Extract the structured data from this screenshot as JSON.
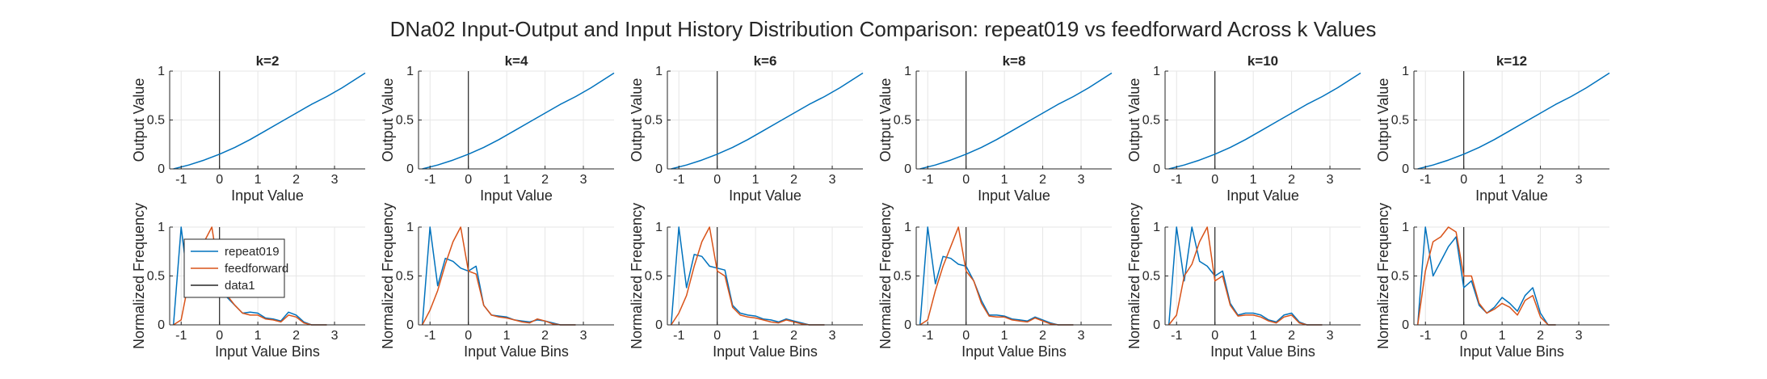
{
  "figure": {
    "title": "DNa02 Input-Output and Input History Distribution Comparison: repeat019 vs feedforward Across k Values"
  },
  "colors": {
    "repeat019": "#0072BD",
    "feedforward": "#D95319",
    "data1": "#262626",
    "grid": "#e6e6e6",
    "axis": "#262626"
  },
  "legend": {
    "entries": [
      "repeat019",
      "feedforward",
      "data1"
    ],
    "location": "inside upper-left of first histogram panel"
  },
  "chart_data": [
    {
      "type": "line",
      "panel": "io",
      "title": "k=2",
      "xlabel": "Input Value",
      "ylabel": "Output Value",
      "xlim": [
        -1.3,
        3.8
      ],
      "ylim": [
        0,
        1
      ],
      "xticks": [
        -1,
        0,
        1,
        2,
        3
      ],
      "yticks": [
        0,
        0.5,
        1
      ],
      "grid": true,
      "vline_x": 0,
      "series": [
        {
          "name": "repeat019",
          "color": "#0072BD",
          "x": [
            -1.2,
            -0.8,
            -0.4,
            0,
            0.4,
            0.8,
            1.2,
            1.6,
            2.0,
            2.4,
            2.8,
            3.2,
            3.8
          ],
          "y": [
            0.0,
            0.04,
            0.09,
            0.15,
            0.22,
            0.3,
            0.39,
            0.48,
            0.57,
            0.66,
            0.74,
            0.83,
            0.98
          ]
        }
      ]
    },
    {
      "type": "line",
      "panel": "io",
      "title": "k=4",
      "xlabel": "Input Value",
      "ylabel": "Output Value",
      "xlim": [
        -1.3,
        3.8
      ],
      "ylim": [
        0,
        1
      ],
      "xticks": [
        -1,
        0,
        1,
        2,
        3
      ],
      "yticks": [
        0,
        0.5,
        1
      ],
      "grid": true,
      "vline_x": 0,
      "series": [
        {
          "name": "repeat019",
          "color": "#0072BD",
          "x": [
            -1.2,
            -0.8,
            -0.4,
            0,
            0.4,
            0.8,
            1.2,
            1.6,
            2.0,
            2.4,
            2.8,
            3.2,
            3.8
          ],
          "y": [
            0.0,
            0.04,
            0.09,
            0.15,
            0.22,
            0.3,
            0.39,
            0.48,
            0.57,
            0.66,
            0.74,
            0.83,
            0.98
          ]
        }
      ]
    },
    {
      "type": "line",
      "panel": "io",
      "title": "k=6",
      "xlabel": "Input Value",
      "ylabel": "Output Value",
      "xlim": [
        -1.3,
        3.8
      ],
      "ylim": [
        0,
        1
      ],
      "xticks": [
        -1,
        0,
        1,
        2,
        3
      ],
      "yticks": [
        0,
        0.5,
        1
      ],
      "grid": true,
      "vline_x": 0,
      "series": [
        {
          "name": "repeat019",
          "color": "#0072BD",
          "x": [
            -1.2,
            -0.8,
            -0.4,
            0,
            0.4,
            0.8,
            1.2,
            1.6,
            2.0,
            2.4,
            2.8,
            3.2,
            3.8
          ],
          "y": [
            0.0,
            0.04,
            0.09,
            0.15,
            0.22,
            0.3,
            0.39,
            0.48,
            0.57,
            0.66,
            0.74,
            0.83,
            0.98
          ]
        }
      ]
    },
    {
      "type": "line",
      "panel": "io",
      "title": "k=8",
      "xlabel": "Input Value",
      "ylabel": "Output Value",
      "xlim": [
        -1.3,
        3.8
      ],
      "ylim": [
        0,
        1
      ],
      "xticks": [
        -1,
        0,
        1,
        2,
        3
      ],
      "yticks": [
        0,
        0.5,
        1
      ],
      "grid": true,
      "vline_x": 0,
      "series": [
        {
          "name": "repeat019",
          "color": "#0072BD",
          "x": [
            -1.2,
            -0.8,
            -0.4,
            0,
            0.4,
            0.8,
            1.2,
            1.6,
            2.0,
            2.4,
            2.8,
            3.2,
            3.8
          ],
          "y": [
            0.0,
            0.04,
            0.09,
            0.15,
            0.22,
            0.3,
            0.39,
            0.48,
            0.57,
            0.66,
            0.74,
            0.83,
            0.98
          ]
        }
      ]
    },
    {
      "type": "line",
      "panel": "io",
      "title": "k=10",
      "xlabel": "Input Value",
      "ylabel": "Output Value",
      "xlim": [
        -1.3,
        3.8
      ],
      "ylim": [
        0,
        1
      ],
      "xticks": [
        -1,
        0,
        1,
        2,
        3
      ],
      "yticks": [
        0,
        0.5,
        1
      ],
      "grid": true,
      "vline_x": 0,
      "series": [
        {
          "name": "repeat019",
          "color": "#0072BD",
          "x": [
            -1.2,
            -0.8,
            -0.4,
            0,
            0.4,
            0.8,
            1.2,
            1.6,
            2.0,
            2.4,
            2.8,
            3.2,
            3.8
          ],
          "y": [
            0.0,
            0.04,
            0.09,
            0.15,
            0.22,
            0.3,
            0.39,
            0.48,
            0.57,
            0.66,
            0.74,
            0.83,
            0.98
          ]
        }
      ]
    },
    {
      "type": "line",
      "panel": "io",
      "title": "k=12",
      "xlabel": "Input Value",
      "ylabel": "Output Value",
      "xlim": [
        -1.3,
        3.8
      ],
      "ylim": [
        0,
        1
      ],
      "xticks": [
        -1,
        0,
        1,
        2,
        3
      ],
      "yticks": [
        0,
        0.5,
        1
      ],
      "grid": true,
      "vline_x": 0,
      "series": [
        {
          "name": "repeat019",
          "color": "#0072BD",
          "x": [
            -1.2,
            -0.8,
            -0.4,
            0,
            0.4,
            0.8,
            1.2,
            1.6,
            2.0,
            2.4,
            2.8,
            3.2,
            3.8
          ],
          "y": [
            0.0,
            0.04,
            0.09,
            0.15,
            0.22,
            0.3,
            0.39,
            0.48,
            0.57,
            0.66,
            0.74,
            0.83,
            0.98
          ]
        }
      ]
    },
    {
      "type": "line",
      "panel": "hist",
      "title": "",
      "xlabel": "Input Value Bins",
      "ylabel": "Normalized Frequency",
      "xlim": [
        -1.3,
        3.8
      ],
      "ylim": [
        0,
        1
      ],
      "xticks": [
        -1,
        0,
        1,
        2,
        3
      ],
      "yticks": [
        0,
        0.5,
        1
      ],
      "grid": true,
      "vline_x": 0,
      "series": [
        {
          "name": "repeat019",
          "color": "#0072BD",
          "x": [
            -1.2,
            -1.0,
            -0.8,
            -0.6,
            -0.4,
            -0.2,
            0.0,
            0.2,
            0.4,
            0.6,
            0.8,
            1.0,
            1.2,
            1.4,
            1.6,
            1.8,
            2.0,
            2.2,
            2.4,
            2.6,
            2.8
          ],
          "y": [
            0.0,
            1.0,
            0.36,
            0.7,
            0.6,
            0.55,
            0.5,
            0.28,
            0.2,
            0.12,
            0.13,
            0.12,
            0.07,
            0.06,
            0.04,
            0.13,
            0.1,
            0.03,
            0.0,
            0.0,
            0.0
          ]
        },
        {
          "name": "feedforward",
          "color": "#D95319",
          "x": [
            -1.2,
            -1.0,
            -0.8,
            -0.6,
            -0.4,
            -0.2,
            0.0,
            0.2,
            0.4,
            0.6,
            0.8,
            1.0,
            1.2,
            1.4,
            1.6,
            1.8,
            2.0,
            2.2,
            2.4,
            2.6,
            2.8
          ],
          "y": [
            0.0,
            0.05,
            0.45,
            0.6,
            0.85,
            1.0,
            0.5,
            0.3,
            0.2,
            0.12,
            0.1,
            0.1,
            0.06,
            0.05,
            0.03,
            0.1,
            0.08,
            0.02,
            0.0,
            0.0,
            0.0
          ]
        }
      ]
    },
    {
      "type": "line",
      "panel": "hist",
      "title": "",
      "xlabel": "Input Value Bins",
      "ylabel": "Normalized Frequency",
      "xlim": [
        -1.3,
        3.8
      ],
      "ylim": [
        0,
        1
      ],
      "xticks": [
        -1,
        0,
        1,
        2,
        3
      ],
      "yticks": [
        0,
        0.5,
        1
      ],
      "grid": true,
      "vline_x": 0,
      "series": [
        {
          "name": "repeat019",
          "color": "#0072BD",
          "x": [
            -1.2,
            -1.0,
            -0.8,
            -0.6,
            -0.4,
            -0.2,
            0.0,
            0.2,
            0.4,
            0.6,
            0.8,
            1.0,
            1.2,
            1.4,
            1.6,
            1.8,
            2.0,
            2.2,
            2.4,
            2.6,
            2.8
          ],
          "y": [
            0.0,
            1.0,
            0.4,
            0.68,
            0.65,
            0.58,
            0.55,
            0.6,
            0.2,
            0.1,
            0.09,
            0.08,
            0.05,
            0.04,
            0.03,
            0.05,
            0.04,
            0.02,
            0.0,
            0.0,
            0.0
          ]
        },
        {
          "name": "feedforward",
          "color": "#D95319",
          "x": [
            -1.2,
            -1.0,
            -0.8,
            -0.6,
            -0.4,
            -0.2,
            0.0,
            0.2,
            0.4,
            0.6,
            0.8,
            1.0,
            1.2,
            1.4,
            1.6,
            1.8,
            2.0,
            2.2,
            2.4,
            2.6,
            2.8
          ],
          "y": [
            0.0,
            0.15,
            0.35,
            0.62,
            0.85,
            1.0,
            0.55,
            0.52,
            0.2,
            0.1,
            0.08,
            0.07,
            0.05,
            0.03,
            0.02,
            0.06,
            0.04,
            0.01,
            0.0,
            0.0,
            0.0
          ]
        }
      ]
    },
    {
      "type": "line",
      "panel": "hist",
      "title": "",
      "xlabel": "Input Value Bins",
      "ylabel": "Normalized Frequency",
      "xlim": [
        -1.3,
        3.8
      ],
      "ylim": [
        0,
        1
      ],
      "xticks": [
        -1,
        0,
        1,
        2,
        3
      ],
      "yticks": [
        0,
        0.5,
        1
      ],
      "grid": true,
      "vline_x": 0,
      "series": [
        {
          "name": "repeat019",
          "color": "#0072BD",
          "x": [
            -1.2,
            -1.0,
            -0.8,
            -0.6,
            -0.4,
            -0.2,
            0.0,
            0.2,
            0.4,
            0.6,
            0.8,
            1.0,
            1.2,
            1.4,
            1.6,
            1.8,
            2.0,
            2.2,
            2.4,
            2.6,
            2.8
          ],
          "y": [
            0.0,
            1.0,
            0.38,
            0.72,
            0.7,
            0.6,
            0.58,
            0.56,
            0.2,
            0.12,
            0.1,
            0.09,
            0.06,
            0.05,
            0.03,
            0.06,
            0.04,
            0.02,
            0.0,
            0.0,
            0.0
          ]
        },
        {
          "name": "feedforward",
          "color": "#D95319",
          "x": [
            -1.2,
            -1.0,
            -0.8,
            -0.6,
            -0.4,
            -0.2,
            0.0,
            0.2,
            0.4,
            0.6,
            0.8,
            1.0,
            1.2,
            1.4,
            1.6,
            1.8,
            2.0,
            2.2,
            2.4,
            2.6,
            2.8
          ],
          "y": [
            0.0,
            0.12,
            0.3,
            0.6,
            0.85,
            1.0,
            0.55,
            0.5,
            0.18,
            0.1,
            0.08,
            0.07,
            0.05,
            0.03,
            0.02,
            0.05,
            0.03,
            0.01,
            0.0,
            0.0,
            0.0
          ]
        }
      ]
    },
    {
      "type": "line",
      "panel": "hist",
      "title": "",
      "xlabel": "Input Value Bins",
      "ylabel": "Normalized Frequency",
      "xlim": [
        -1.3,
        3.8
      ],
      "ylim": [
        0,
        1
      ],
      "xticks": [
        -1,
        0,
        1,
        2,
        3
      ],
      "yticks": [
        0,
        0.5,
        1
      ],
      "grid": true,
      "vline_x": 0,
      "series": [
        {
          "name": "repeat019",
          "color": "#0072BD",
          "x": [
            -1.2,
            -1.0,
            -0.8,
            -0.6,
            -0.4,
            -0.2,
            0.0,
            0.2,
            0.4,
            0.6,
            0.8,
            1.0,
            1.2,
            1.4,
            1.6,
            1.8,
            2.0,
            2.2,
            2.4,
            2.6,
            2.8
          ],
          "y": [
            0.0,
            1.0,
            0.42,
            0.7,
            0.68,
            0.62,
            0.6,
            0.45,
            0.25,
            0.1,
            0.1,
            0.09,
            0.06,
            0.05,
            0.04,
            0.08,
            0.05,
            0.02,
            0.0,
            0.0,
            0.0
          ]
        },
        {
          "name": "feedforward",
          "color": "#D95319",
          "x": [
            -1.2,
            -1.0,
            -0.8,
            -0.6,
            -0.4,
            -0.2,
            0.0,
            0.2,
            0.4,
            0.6,
            0.8,
            1.0,
            1.2,
            1.4,
            1.6,
            1.8,
            2.0,
            2.2,
            2.4,
            2.6,
            2.8
          ],
          "y": [
            0.0,
            0.05,
            0.35,
            0.6,
            0.8,
            1.0,
            0.55,
            0.45,
            0.22,
            0.09,
            0.08,
            0.08,
            0.05,
            0.04,
            0.03,
            0.07,
            0.04,
            0.01,
            0.0,
            0.0,
            0.0
          ]
        }
      ]
    },
    {
      "type": "line",
      "panel": "hist",
      "title": "",
      "xlabel": "Input Value Bins",
      "ylabel": "Normalized Frequency",
      "xlim": [
        -1.3,
        3.8
      ],
      "ylim": [
        0,
        1
      ],
      "xticks": [
        -1,
        0,
        1,
        2,
        3
      ],
      "yticks": [
        0,
        0.5,
        1
      ],
      "grid": true,
      "vline_x": 0,
      "series": [
        {
          "name": "repeat019",
          "color": "#0072BD",
          "x": [
            -1.2,
            -1.0,
            -0.8,
            -0.6,
            -0.4,
            -0.2,
            0.0,
            0.2,
            0.4,
            0.6,
            0.8,
            1.0,
            1.2,
            1.4,
            1.6,
            1.8,
            2.0,
            2.2,
            2.4,
            2.6,
            2.8
          ],
          "y": [
            0.0,
            1.0,
            0.45,
            1.0,
            0.65,
            0.6,
            0.5,
            0.55,
            0.22,
            0.1,
            0.12,
            0.12,
            0.1,
            0.05,
            0.03,
            0.1,
            0.12,
            0.03,
            0.0,
            0.0,
            0.0
          ]
        },
        {
          "name": "feedforward",
          "color": "#D95319",
          "x": [
            -1.2,
            -1.0,
            -0.8,
            -0.6,
            -0.4,
            -0.2,
            0.0,
            0.2,
            0.4,
            0.6,
            0.8,
            1.0,
            1.2,
            1.4,
            1.6,
            1.8,
            2.0,
            2.2,
            2.4,
            2.6,
            2.8
          ],
          "y": [
            0.0,
            0.1,
            0.5,
            0.62,
            0.85,
            1.0,
            0.45,
            0.5,
            0.2,
            0.09,
            0.1,
            0.1,
            0.08,
            0.04,
            0.02,
            0.08,
            0.1,
            0.02,
            0.0,
            0.0,
            0.0
          ]
        }
      ]
    },
    {
      "type": "line",
      "panel": "hist",
      "title": "",
      "xlabel": "Input Value Bins",
      "ylabel": "Normalized Frequency",
      "xlim": [
        -1.3,
        3.8
      ],
      "ylim": [
        0,
        1
      ],
      "xticks": [
        -1,
        0,
        1,
        2,
        3
      ],
      "yticks": [
        0,
        0.5,
        1
      ],
      "grid": true,
      "vline_x": 0,
      "series": [
        {
          "name": "repeat019",
          "color": "#0072BD",
          "x": [
            -1.2,
            -1.0,
            -0.8,
            -0.6,
            -0.4,
            -0.2,
            0.0,
            0.2,
            0.4,
            0.6,
            0.8,
            1.0,
            1.2,
            1.4,
            1.6,
            1.8,
            2.0,
            2.2,
            2.4
          ],
          "y": [
            0.0,
            1.0,
            0.5,
            0.65,
            0.8,
            0.9,
            0.38,
            0.45,
            0.2,
            0.12,
            0.18,
            0.28,
            0.22,
            0.14,
            0.3,
            0.38,
            0.12,
            0.0,
            0.0
          ]
        },
        {
          "name": "feedforward",
          "color": "#D95319",
          "x": [
            -1.2,
            -1.0,
            -0.8,
            -0.6,
            -0.4,
            -0.2,
            0.0,
            0.2,
            0.4,
            0.6,
            0.8,
            1.0,
            1.2,
            1.4,
            1.6,
            1.8,
            2.0,
            2.2,
            2.4
          ],
          "y": [
            0.0,
            0.55,
            0.85,
            0.9,
            1.0,
            0.95,
            0.5,
            0.5,
            0.22,
            0.12,
            0.16,
            0.22,
            0.18,
            0.1,
            0.25,
            0.3,
            0.08,
            0.0,
            0.0
          ]
        }
      ]
    }
  ]
}
